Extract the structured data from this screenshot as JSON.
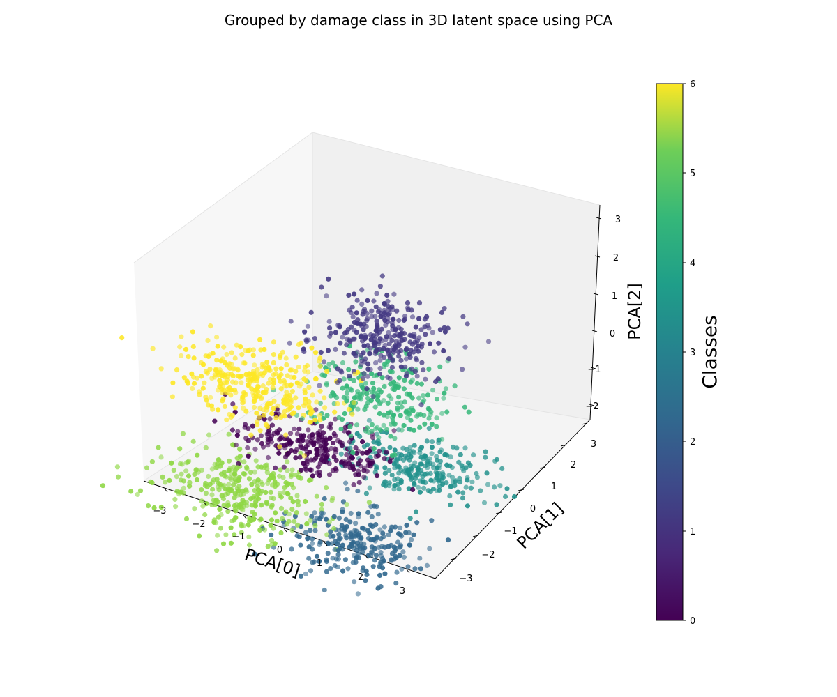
{
  "chart_data": {
    "type": "scatter",
    "projection": "3d",
    "title": "Grouped by damage class in 3D latent space using PCA",
    "xlabel": "PCA[0]",
    "ylabel": "PCA[1]",
    "zlabel": "PCA[2]",
    "xlim": [
      -3.5,
      3.5
    ],
    "ylim": [
      -3.5,
      3.5
    ],
    "zlim": [
      -2.5,
      3.3
    ],
    "x_ticks": [
      "−3",
      "−2",
      "−1",
      "0",
      "1",
      "2",
      "3"
    ],
    "y_ticks": [
      "−3",
      "−2",
      "−1",
      "0",
      "1",
      "2",
      "3"
    ],
    "z_ticks": [
      "−2",
      "−1",
      "0",
      "1",
      "2",
      "3"
    ],
    "colormap": "viridis",
    "colorbar": {
      "label": "Classes",
      "range": [
        0,
        6
      ],
      "ticks": [
        "0",
        "1",
        "2",
        "3",
        "4",
        "5",
        "6"
      ]
    },
    "grid": false,
    "series": [
      {
        "class": 0,
        "color": "#440154",
        "center": [
          -0.5,
          1.0,
          -0.9
        ],
        "spread": [
          0.9,
          0.5,
          0.12
        ],
        "n": 260
      },
      {
        "class": 1,
        "color": "#443983",
        "center": [
          0.2,
          2.4,
          1.5
        ],
        "spread": [
          0.7,
          0.7,
          0.25
        ],
        "n": 300
      },
      {
        "class": 2,
        "color": "#31688e",
        "center": [
          1.3,
          -0.4,
          -1.9
        ],
        "spread": [
          0.8,
          0.7,
          0.15
        ],
        "n": 250
      },
      {
        "class": 3,
        "color": "#21918c",
        "center": [
          1.5,
          1.9,
          -1.2
        ],
        "spread": [
          0.8,
          0.5,
          0.15
        ],
        "n": 250
      },
      {
        "class": 4,
        "color": "#35b779",
        "center": [
          0.6,
          1.8,
          0.4
        ],
        "spread": [
          0.8,
          0.7,
          0.25
        ],
        "n": 240
      },
      {
        "class": 5,
        "color": "#8fd744",
        "center": [
          -1.5,
          -0.3,
          -1.7
        ],
        "spread": [
          1.0,
          0.8,
          0.15
        ],
        "n": 340
      },
      {
        "class": 6,
        "color": "#fde725",
        "center": [
          -1.7,
          0.4,
          0.7
        ],
        "spread": [
          0.9,
          0.6,
          0.25
        ],
        "n": 340
      }
    ]
  }
}
